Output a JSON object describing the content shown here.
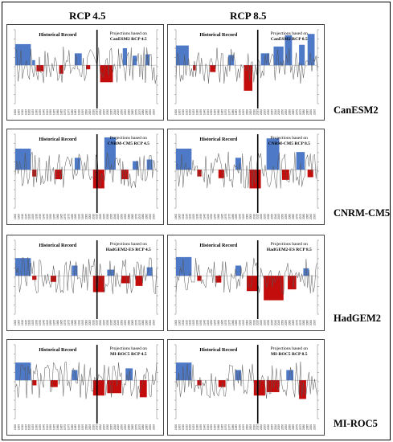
{
  "columns": [
    "RCP 4.5",
    "RCP 8.5"
  ],
  "models": [
    "CanESM2",
    "CNRM-CM5",
    "HadGEM2",
    "MI-ROC5"
  ],
  "panel_text": {
    "historical_label": "Historical Record",
    "projection_prefix": "Projections based on"
  },
  "projection_labels": [
    [
      "CanESM2 RCP 4.5",
      "CanESM2 RCP 8.5"
    ],
    [
      "CNRM-CM5 RCP 4.5",
      "CNRM-CM5 RCP 8.5"
    ],
    [
      "HadGEM2-ES RCP 4.5",
      "HadGEM2-ES RCP 8.5"
    ],
    [
      "MI-ROC5 RCP 4.5",
      "MI-ROC5 RCP 8.5"
    ]
  ],
  "colors": {
    "wet": "#4472c4",
    "dry": "#c00000",
    "line": "#555555",
    "divider": "#000000"
  },
  "chart_data": {
    "type": "bar",
    "description_series": "Blue bars above zero = wet periods, red bars below zero = dry periods; thin line = annual anomaly",
    "ylim": [
      -1,
      1
    ],
    "x_range_years": [
      1900,
      2099
    ],
    "divider_year": 2015,
    "panels": [
      {
        "model": "CanESM2",
        "scenario": "RCP 4.5",
        "blocks": [
          [
            0,
            0,
            0.11,
            0.62
          ],
          [
            0.12,
            0.2,
            0.02,
            0.15
          ],
          [
            0.15,
            0.25,
            0.05,
            -0.18
          ],
          [
            0.31,
            0.38,
            0.03,
            -0.25
          ],
          [
            0.42,
            0.43,
            0.05,
            0.35
          ],
          [
            0.5,
            0.56,
            0.03,
            -0.12
          ],
          [
            0.6,
            0.66,
            0.09,
            -0.5
          ],
          [
            0.76,
            0.8,
            0.03,
            0.5
          ],
          [
            0.83,
            0.88,
            0.03,
            0.28
          ],
          [
            0.92,
            0.97,
            0.03,
            0.32
          ]
        ]
      },
      {
        "model": "CanESM2",
        "scenario": "RCP 8.5",
        "blocks": [
          [
            0,
            0,
            0.09,
            0.58
          ],
          [
            0.12,
            0.2,
            0.02,
            -0.15
          ],
          [
            0.24,
            0.3,
            0.04,
            -0.2
          ],
          [
            0.37,
            0.4,
            0.04,
            0.3
          ],
          [
            0.48,
            0.55,
            0.06,
            -0.75
          ],
          [
            0.6,
            0.65,
            0.06,
            0.35
          ],
          [
            0.69,
            0.73,
            0.07,
            0.55
          ],
          [
            0.77,
            0.82,
            0.05,
            0.88
          ],
          [
            0.87,
            0.9,
            0.04,
            0.6
          ],
          [
            0.93,
            0.97,
            0.05,
            0.92
          ]
        ]
      },
      {
        "model": "CNRM-CM5",
        "scenario": "RCP 4.5",
        "blocks": [
          [
            0,
            0,
            0.11,
            0.62
          ],
          [
            0.12,
            0.2,
            0.03,
            -0.2
          ],
          [
            0.28,
            0.33,
            0.05,
            -0.28
          ],
          [
            0.42,
            0.45,
            0.04,
            0.35
          ],
          [
            0.55,
            0.58,
            0.08,
            -0.55
          ],
          [
            0.63,
            0.63,
            0.08,
            0.95
          ],
          [
            0.75,
            0.8,
            0.05,
            -0.28
          ],
          [
            0.83,
            0.88,
            0.04,
            0.25
          ],
          [
            0.93,
            0.97,
            0.04,
            0.3
          ]
        ]
      },
      {
        "model": "CNRM-CM5",
        "scenario": "RCP 8.5",
        "blocks": [
          [
            0,
            0,
            0.11,
            0.62
          ],
          [
            0.15,
            0.22,
            0.03,
            -0.2
          ],
          [
            0.3,
            0.34,
            0.04,
            -0.25
          ],
          [
            0.42,
            0.45,
            0.04,
            0.35
          ],
          [
            0.52,
            0.58,
            0.08,
            -0.55
          ],
          [
            0.64,
            0.66,
            0.09,
            0.92
          ],
          [
            0.75,
            0.8,
            0.05,
            -0.3
          ],
          [
            0.85,
            0.9,
            0.06,
            0.52
          ],
          [
            0.93,
            0.97,
            0.04,
            -0.22
          ]
        ]
      },
      {
        "model": "HadGEM2",
        "scenario": "RCP 4.5",
        "blocks": [
          [
            0,
            0,
            0.11,
            0.52
          ],
          [
            0.12,
            0.2,
            0.03,
            -0.12
          ],
          [
            0.25,
            0.3,
            0.04,
            -0.18
          ],
          [
            0.4,
            0.45,
            0.04,
            0.3
          ],
          [
            0.55,
            0.58,
            0.08,
            -0.48
          ],
          [
            0.65,
            0.7,
            0.05,
            0.18
          ],
          [
            0.75,
            0.8,
            0.06,
            -0.22
          ],
          [
            0.85,
            0.9,
            0.05,
            -0.3
          ],
          [
            0.93,
            0.97,
            0.04,
            0.25
          ]
        ]
      },
      {
        "model": "HadGEM2",
        "scenario": "RCP 8.5",
        "blocks": [
          [
            0,
            0,
            0.11,
            0.55
          ],
          [
            0.15,
            0.2,
            0.03,
            -0.15
          ],
          [
            0.28,
            0.33,
            0.04,
            -0.2
          ],
          [
            0.42,
            0.45,
            0.04,
            0.3
          ],
          [
            0.5,
            0.56,
            0.08,
            -0.45
          ],
          [
            0.62,
            0.62,
            0.14,
            -0.72
          ],
          [
            0.79,
            0.84,
            0.06,
            -0.4
          ],
          [
            0.9,
            0.94,
            0.04,
            0.22
          ]
        ]
      },
      {
        "model": "MI-ROC5",
        "scenario": "RCP 4.5",
        "blocks": [
          [
            0,
            0,
            0.11,
            0.52
          ],
          [
            0.12,
            0.2,
            0.03,
            -0.15
          ],
          [
            0.25,
            0.3,
            0.05,
            -0.2
          ],
          [
            0.4,
            0.45,
            0.04,
            0.3
          ],
          [
            0.55,
            0.58,
            0.08,
            -0.45
          ],
          [
            0.65,
            0.68,
            0.1,
            -0.38
          ],
          [
            0.78,
            0.82,
            0.05,
            0.35
          ],
          [
            0.88,
            0.9,
            0.05,
            -0.5
          ]
        ]
      },
      {
        "model": "MI-ROC5",
        "scenario": "RCP 8.5",
        "blocks": [
          [
            0,
            0,
            0.11,
            0.52
          ],
          [
            0.15,
            0.2,
            0.03,
            -0.15
          ],
          [
            0.3,
            0.33,
            0.05,
            -0.2
          ],
          [
            0.42,
            0.45,
            0.04,
            0.3
          ],
          [
            0.55,
            0.58,
            0.08,
            -0.45
          ],
          [
            0.64,
            0.66,
            0.09,
            -0.35
          ],
          [
            0.78,
            0.82,
            0.05,
            0.3
          ],
          [
            0.87,
            0.9,
            0.05,
            -0.55
          ]
        ]
      }
    ]
  }
}
